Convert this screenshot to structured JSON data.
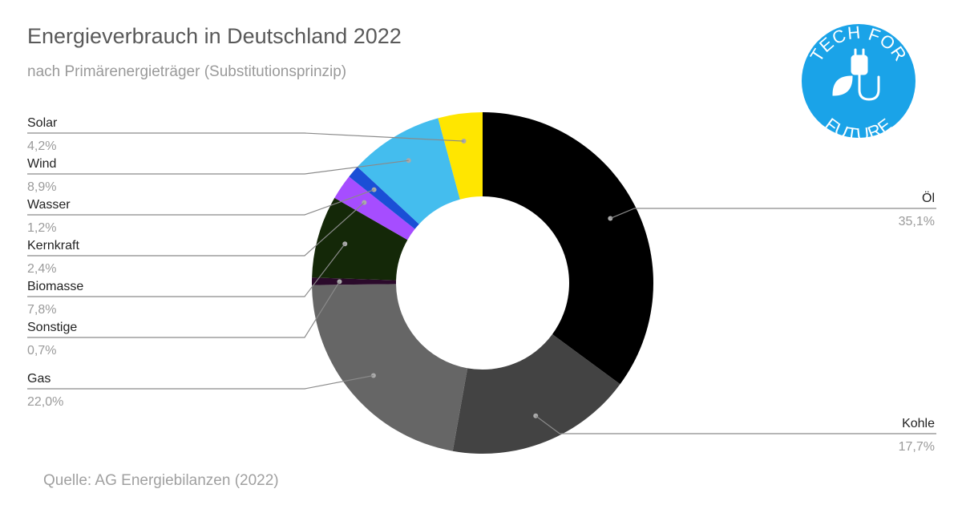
{
  "title": "Energieverbrauch in Deutschland 2022",
  "subtitle": "nach Primärenergieträger (Substitutionsprinzip)",
  "source": "Quelle: AG Energiebilanzen (2022)",
  "logo": {
    "top_text": "TECH FOR",
    "bottom_text": "FUTURE",
    "color": "#1aa3e8",
    "icon": "plug-leaf-icon"
  },
  "chart_data": {
    "type": "pie",
    "donut": true,
    "title": "Energieverbrauch in Deutschland 2022",
    "subtitle": "nach Primärenergieträger (Substitutionsprinzip)",
    "legend": "none",
    "slices": [
      {
        "name": "Öl",
        "value": 35.1,
        "label": "35,1%",
        "color": "#000000"
      },
      {
        "name": "Kohle",
        "value": 17.7,
        "label": "17,7%",
        "color": "#434343"
      },
      {
        "name": "Gas",
        "value": 22.0,
        "label": "22,0%",
        "color": "#666666"
      },
      {
        "name": "Sonstige",
        "value": 0.7,
        "label": "0,7%",
        "color": "#2b0a2b"
      },
      {
        "name": "Biomasse",
        "value": 7.8,
        "label": "7,8%",
        "color": "#142808"
      },
      {
        "name": "Kernkraft",
        "value": 2.4,
        "label": "2,4%",
        "color": "#a64dff"
      },
      {
        "name": "Wasser",
        "value": 1.2,
        "label": "1,2%",
        "color": "#1a4fd6"
      },
      {
        "name": "Wind",
        "value": 8.9,
        "label": "8,9%",
        "color": "#44bdee"
      },
      {
        "name": "Solar",
        "value": 4.2,
        "label": "4,2%",
        "color": "#ffe600"
      }
    ]
  }
}
